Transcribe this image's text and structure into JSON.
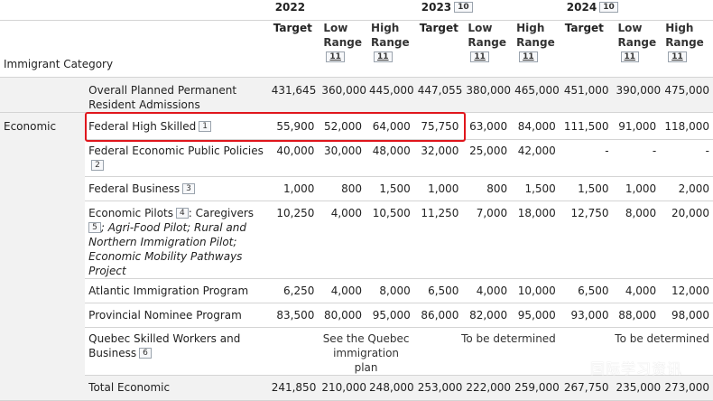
{
  "years": [
    {
      "label": "2022",
      "ref": ""
    },
    {
      "label": "2023",
      "ref": "10"
    },
    {
      "label": "2024",
      "ref": "10"
    }
  ],
  "subheaders": {
    "category": "Immigrant Category",
    "target": "Target",
    "low": "Low Range",
    "high": "High Range",
    "range_ref": "11"
  },
  "overall": {
    "label": "Overall Planned Permanent Resident Admissions",
    "values": [
      "431,645",
      "360,000",
      "445,000",
      "447,055",
      "380,000",
      "465,000",
      "451,000",
      "390,000",
      "475,000"
    ]
  },
  "economic": {
    "category": "Economic",
    "rows": [
      {
        "label": "Federal High Skilled",
        "ref": "1",
        "values": [
          "55,900",
          "52,000",
          "64,000",
          "75,750",
          "63,000",
          "84,000",
          "111,500",
          "91,000",
          "118,000"
        ]
      },
      {
        "label": "Federal Economic Public Policies",
        "ref": "2",
        "values": [
          "40,000",
          "30,000",
          "48,000",
          "32,000",
          "25,000",
          "42,000",
          "-",
          "-",
          "-"
        ]
      },
      {
        "label": "Federal Business",
        "ref": "3",
        "values": [
          "1,000",
          "800",
          "1,500",
          "1,000",
          "800",
          "1,500",
          "1,500",
          "1,000",
          "2,000"
        ]
      },
      {
        "label": "Economic Pilots",
        "ref": "4",
        "label_rest": ": Caregivers",
        "ref2": "5",
        "italic": "; Agri-Food Pilot; Rural and Northern Immigration Pilot; Economic Mobility Pathways Project",
        "values": [
          "10,250",
          "4,000",
          "10,500",
          "11,250",
          "7,000",
          "18,000",
          "12,750",
          "8,000",
          "20,000"
        ]
      },
      {
        "label": "Atlantic Immigration Program",
        "values": [
          "6,250",
          "4,000",
          "8,000",
          "6,500",
          "4,000",
          "10,000",
          "6,500",
          "4,000",
          "12,000"
        ]
      },
      {
        "label": "Provincial Nominee Program",
        "values": [
          "83,500",
          "80,000",
          "95,000",
          "86,000",
          "82,000",
          "95,000",
          "93,000",
          "88,000",
          "98,000"
        ]
      }
    ],
    "quebec": {
      "label": "Quebec Skilled Workers and Business",
      "ref": "6",
      "y2022": "See the Quebec immigration plan",
      "y2023": "To be determined",
      "y2024": "To be determined"
    },
    "total": {
      "label": "Total Economic",
      "values": [
        "241,850",
        "210,000",
        "248,000",
        "253,000",
        "222,000",
        "259,000",
        "267,750",
        "235,000",
        "273,000"
      ]
    }
  },
  "highlight_color": "#e0161c",
  "watermark": "国际学习资讯"
}
